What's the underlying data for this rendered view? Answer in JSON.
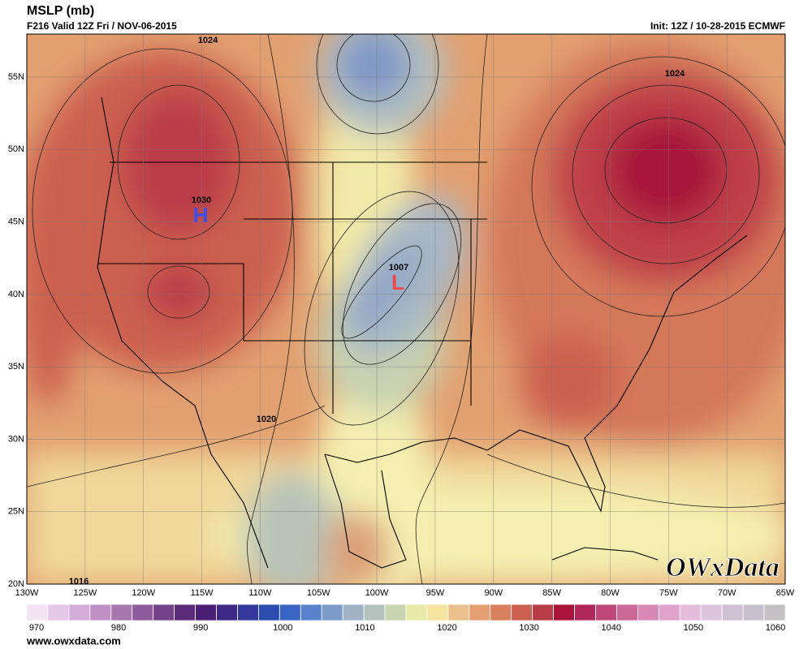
{
  "header": {
    "title": "MSLP (mb)",
    "valid": "F216 Valid 12Z Fri / NOV-06-2015",
    "init": "Init: 12Z / 10-28-2015 ECMWF"
  },
  "map": {
    "latitude_labels": [
      "55N",
      "50N",
      "45N",
      "40N",
      "35N",
      "30N",
      "25N",
      "20N"
    ],
    "longitude_labels": [
      "130W",
      "125W",
      "120W",
      "115W",
      "110W",
      "105W",
      "100W",
      "95W",
      "90W",
      "85W",
      "80W",
      "75W",
      "70W",
      "65W"
    ],
    "contour_labels": [
      "1024",
      "1024",
      "1030",
      "1007",
      "1020",
      "1016"
    ],
    "pressure_centers": [
      "H",
      "L"
    ],
    "logo": "OWxData"
  },
  "colorbar": {
    "labels": [
      970,
      980,
      990,
      1000,
      1010,
      1020,
      1030,
      1040,
      1050,
      1060
    ],
    "colors": [
      "#f3e3f3",
      "#e5c8e8",
      "#d4acd8",
      "#bf8fc6",
      "#a877b0",
      "#8e5c9c",
      "#74418a",
      "#5b2a78",
      "#4a1e74",
      "#3e2a86",
      "#33389a",
      "#2c4cb0",
      "#3a64c4",
      "#5a82cc",
      "#7b9bc8",
      "#9fb2c6",
      "#b4c2be",
      "#c9d4b0",
      "#e8eaa8",
      "#f4e4a0",
      "#ecc08c",
      "#e4a070",
      "#d8805e",
      "#cc6050",
      "#b83c48",
      "#a8143a",
      "#b0285a",
      "#c04878",
      "#cc6898",
      "#d888b4",
      "#e0a4cc",
      "#e6bcdc",
      "#dcc4de",
      "#d0c0d4",
      "#c8c0cc",
      "#c4c0c4"
    ]
  },
  "footer": {
    "url": "www.owxdata.com"
  }
}
